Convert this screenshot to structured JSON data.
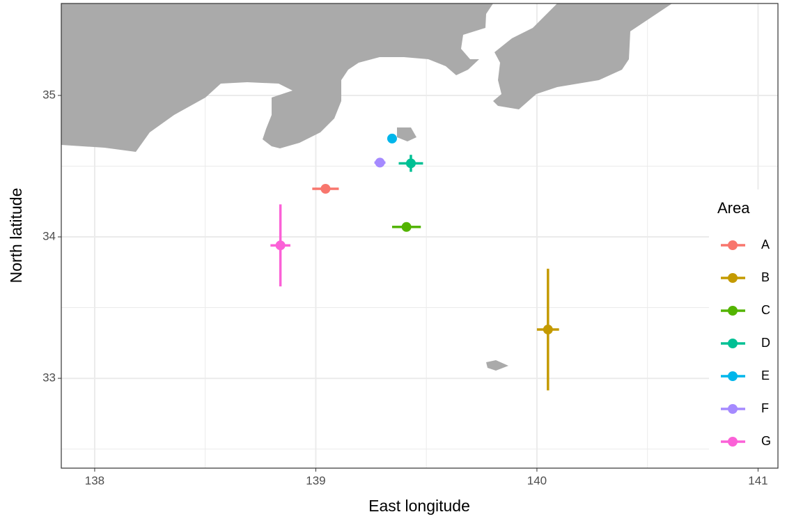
{
  "chart_data": {
    "type": "scatter",
    "x_label": "East longitude",
    "y_label": "North latitude",
    "xlim": [
      137.849,
      141.09
    ],
    "ylim": [
      32.365,
      35.65
    ],
    "xticks": [
      138,
      139,
      140,
      141
    ],
    "yticks": [
      33,
      34,
      35
    ],
    "xminor": [
      138.5,
      139.5,
      140.5
    ],
    "yminor": [
      32.5,
      33.5,
      34.5
    ],
    "grid": true,
    "legend_title": "Area",
    "legend_position": "right",
    "series": [
      {
        "name": "A",
        "color": "#F8766D",
        "x": [
          139.044
        ],
        "values": [
          34.34
        ],
        "xerr": [
          0.06
        ],
        "yerr": [
          0.01
        ]
      },
      {
        "name": "B",
        "color": "#C49A00",
        "x": [
          140.05
        ],
        "values": [
          33.345
        ],
        "xerr": [
          0.05
        ],
        "yerr": [
          0.43
        ]
      },
      {
        "name": "C",
        "color": "#53B400",
        "x": [
          139.41
        ],
        "values": [
          34.07
        ],
        "xerr": [
          0.065
        ],
        "yerr": [
          0.01
        ]
      },
      {
        "name": "D",
        "color": "#00C094",
        "x": [
          139.43
        ],
        "values": [
          34.52
        ],
        "xerr": [
          0.055
        ],
        "yerr": [
          0.06
        ]
      },
      {
        "name": "E",
        "color": "#00B6EB",
        "x": [
          139.345
        ],
        "values": [
          34.695
        ],
        "xerr": [
          0.01
        ],
        "yerr": [
          0.01
        ]
      },
      {
        "name": "F",
        "color": "#A58AFF",
        "x": [
          139.29
        ],
        "values": [
          34.525
        ],
        "xerr": [
          0.025
        ],
        "yerr": [
          0.01
        ]
      },
      {
        "name": "G",
        "color": "#FB61D7",
        "x": [
          138.84
        ],
        "values": [
          33.94
        ],
        "xerr": [
          0.045
        ],
        "yerr": [
          0.29
        ]
      }
    ]
  }
}
